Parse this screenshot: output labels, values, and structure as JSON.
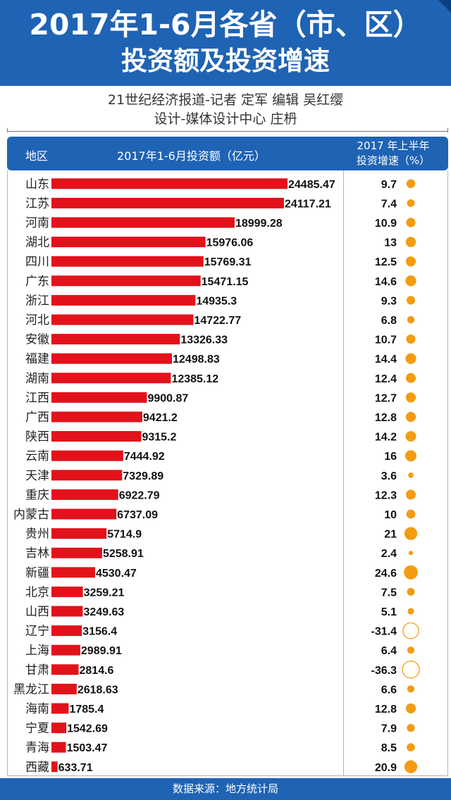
{
  "title": {
    "line1": "2017年1-6月各省（市、区）",
    "line2": "投资额及投资增速"
  },
  "credits": {
    "line1": "21世纪经济报道-记者  定军    编辑  吴红缨",
    "line2": "设计-媒体设计中心  庄枬"
  },
  "header": {
    "region": "地区",
    "amount": "2017年1-6月投资额（亿元）",
    "growth_line1": "2017 年上半年",
    "growth_line2": "投资增速（%）"
  },
  "footer": "数据来源：地方统计局",
  "colors": {
    "banner": "#1f63b4",
    "bar": "#e2121b",
    "growth_dot": "#f39c12"
  },
  "chart_data": {
    "type": "bar",
    "orientation": "horizontal",
    "categories": [
      "山东",
      "江苏",
      "河南",
      "湖北",
      "四川",
      "广东",
      "浙江",
      "河北",
      "安徽",
      "福建",
      "湖南",
      "江西",
      "广西",
      "陕西",
      "云南",
      "天津",
      "重庆",
      "内蒙古",
      "贵州",
      "吉林",
      "新疆",
      "北京",
      "山西",
      "辽宁",
      "上海",
      "甘肃",
      "黑龙江",
      "海南",
      "宁夏",
      "青海",
      "西藏"
    ],
    "series": [
      {
        "name": "2017年1-6月投资额（亿元）",
        "values": [
          24485.47,
          24117.21,
          18999.28,
          15976.06,
          15769.31,
          15471.15,
          14935.3,
          14722.77,
          13326.33,
          12498.83,
          12385.12,
          9900.87,
          9421.2,
          9315.2,
          7444.92,
          7329.89,
          6922.79,
          6737.09,
          5714.9,
          5258.91,
          4530.47,
          3259.21,
          3249.63,
          3156.4,
          2989.91,
          2814.6,
          2618.63,
          1785.4,
          1542.69,
          1503.47,
          633.71
        ],
        "labels": [
          "24485.47",
          "24117.21",
          "18999.28",
          "15976.06",
          "15769.31",
          "15471.15",
          "14935.3",
          "14722.77",
          "13326.33",
          "12498.83",
          "12385.12",
          "9900.87",
          "9421.2",
          "9315.2",
          "7444.92",
          "7329.89",
          "6922.79",
          "6737.09",
          "5714.9",
          "5258.91",
          "4530.47",
          "3259.21",
          "3249.63",
          "3156.4",
          "2989.91",
          "2814.6",
          "2618.63",
          "1785.4",
          "1542.69",
          "1503.47",
          "633.71"
        ]
      },
      {
        "name": "2017 年上半年投资增速（%）",
        "encoding": "circle size; negative values drawn as hollow circles",
        "values": [
          9.7,
          7.4,
          10.9,
          13,
          12.5,
          14.6,
          9.3,
          6.8,
          10.7,
          14.4,
          12.4,
          12.7,
          12.8,
          14.2,
          16,
          3.6,
          12.3,
          10,
          21,
          2.4,
          24.6,
          7.5,
          5.1,
          -31.4,
          6.4,
          -36.3,
          6.6,
          12.8,
          7.9,
          8.5,
          20.9
        ],
        "labels": [
          "9.7",
          "7.4",
          "10.9",
          "13",
          "12.5",
          "14.6",
          "9.3",
          "6.8",
          "10.7",
          "14.4",
          "12.4",
          "12.7",
          "12.8",
          "14.2",
          "16",
          "3.6",
          "12.3",
          "10",
          "21",
          "2.4",
          "24.6",
          "7.5",
          "5.1",
          "-31.4",
          "6.4",
          "-36.3",
          "6.6",
          "12.8",
          "7.9",
          "8.5",
          "20.9"
        ]
      }
    ],
    "xlim": [
      0,
      26000
    ]
  }
}
